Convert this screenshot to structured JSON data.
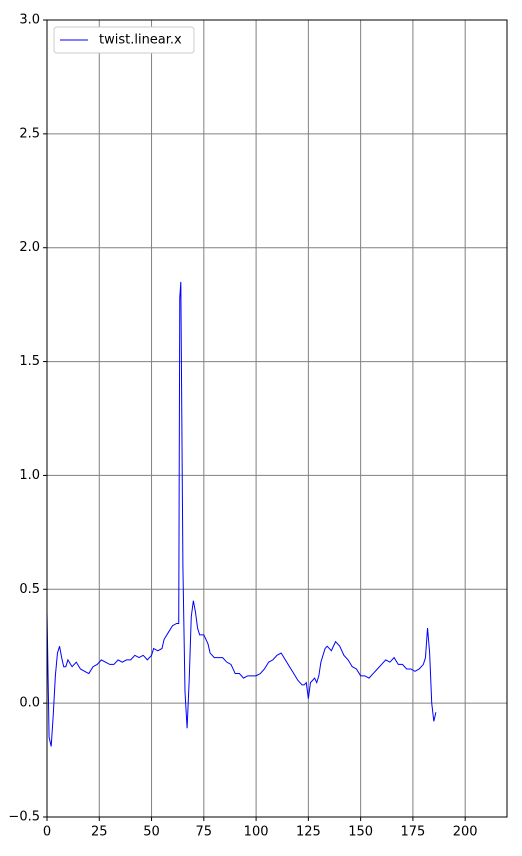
{
  "chart_data": {
    "type": "line",
    "x": [
      0,
      1,
      2,
      3,
      4,
      5,
      6,
      7,
      8,
      9,
      10,
      12,
      14,
      16,
      18,
      20,
      22,
      24,
      26,
      28,
      30,
      32,
      34,
      36,
      38,
      40,
      42,
      44,
      46,
      48,
      50,
      51,
      53,
      55,
      56,
      58,
      60,
      62,
      63,
      63.5,
      64,
      65,
      66,
      67,
      68,
      69,
      70,
      71,
      72,
      73,
      75,
      77,
      78,
      80,
      84,
      86,
      88,
      90,
      92,
      94,
      96,
      98,
      100,
      102,
      104,
      106,
      108,
      110,
      112,
      114,
      116,
      118,
      120,
      122,
      123,
      124,
      125,
      126,
      127,
      128,
      129,
      130,
      131,
      133,
      134,
      136,
      138,
      140,
      142,
      144,
      146,
      148,
      150,
      152,
      154,
      156,
      158,
      160,
      162,
      164,
      166,
      168,
      170,
      172,
      174,
      176,
      178,
      180,
      181,
      182,
      183,
      184,
      185,
      186
    ],
    "series": [
      {
        "name": "twist.linear.x",
        "color": "#0000ff",
        "values": [
          0.4,
          -0.15,
          -0.19,
          -0.05,
          0.12,
          0.22,
          0.25,
          0.2,
          0.16,
          0.16,
          0.19,
          0.16,
          0.18,
          0.15,
          0.14,
          0.13,
          0.16,
          0.17,
          0.19,
          0.18,
          0.17,
          0.17,
          0.19,
          0.18,
          0.19,
          0.19,
          0.21,
          0.2,
          0.21,
          0.19,
          0.21,
          0.24,
          0.23,
          0.24,
          0.28,
          0.31,
          0.34,
          0.35,
          0.35,
          1.78,
          1.85,
          0.6,
          0.05,
          -0.11,
          0.1,
          0.38,
          0.45,
          0.4,
          0.33,
          0.3,
          0.3,
          0.26,
          0.22,
          0.2,
          0.2,
          0.18,
          0.17,
          0.13,
          0.13,
          0.11,
          0.12,
          0.12,
          0.12,
          0.13,
          0.15,
          0.18,
          0.19,
          0.21,
          0.22,
          0.19,
          0.16,
          0.13,
          0.1,
          0.08,
          0.08,
          0.09,
          0.02,
          0.09,
          0.1,
          0.11,
          0.09,
          0.12,
          0.18,
          0.24,
          0.25,
          0.23,
          0.27,
          0.25,
          0.21,
          0.19,
          0.16,
          0.15,
          0.12,
          0.12,
          0.11,
          0.13,
          0.15,
          0.17,
          0.19,
          0.18,
          0.2,
          0.17,
          0.17,
          0.15,
          0.15,
          0.14,
          0.15,
          0.17,
          0.2,
          0.33,
          0.22,
          0.0,
          -0.08,
          -0.04
        ]
      }
    ],
    "xlim": [
      0,
      220
    ],
    "xticks": [
      0,
      25,
      50,
      75,
      100,
      125,
      150,
      175,
      200
    ],
    "ylim": [
      -0.5,
      3.0
    ],
    "yticks": [
      {
        "value": -0.5,
        "label": "−0.5"
      },
      {
        "value": 0,
        "label": "0.0"
      },
      0.5,
      {
        "value": 1,
        "label": "1.0"
      },
      1.5,
      {
        "value": 2,
        "label": "2.0"
      },
      2.5,
      {
        "value": 3,
        "label": "3.0"
      }
    ],
    "grid": true,
    "legend": "upper left"
  }
}
